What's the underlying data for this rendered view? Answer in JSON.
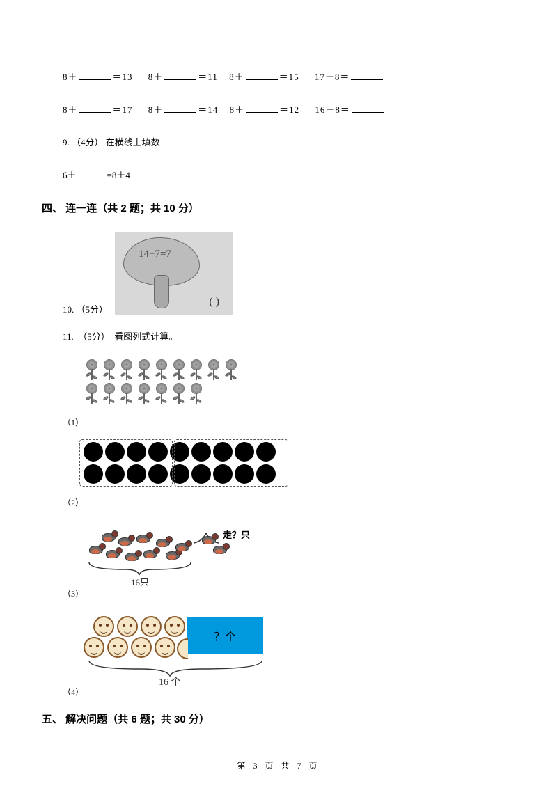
{
  "row1": {
    "e1a": "8＋",
    "e1b": "＝13",
    "e2a": "8＋",
    "e2b": "＝11",
    "e3a": "8＋",
    "e3b": "＝15",
    "e4a": "17－8＝"
  },
  "row2": {
    "e1a": "8＋",
    "e1b": "＝17",
    "e2a": "8＋",
    "e2b": "＝14",
    "e3a": "8＋",
    "e3b": "＝12",
    "e4a": "16－8＝"
  },
  "q9": {
    "label": "9.",
    "points": "（4分）",
    "text": "在横线上填数",
    "eq_a": "6＋",
    "eq_b": "=8＋4"
  },
  "section4": {
    "title": "四、 连一连（共 2 题；共 10 分）"
  },
  "q10": {
    "label": "10.",
    "points": "（5分）",
    "tree_eq": "14−7=7",
    "paren": "(        )"
  },
  "q11": {
    "label": "11.",
    "points": "（5分）",
    "text": "看图列式计算。",
    "sub1": "（1）",
    "sub2": "（2）",
    "sub3": "（3）",
    "sub4": "（4）",
    "flowers_row1": 9,
    "flowers_row2": 7,
    "dots_row1": 9,
    "dots_row2": 9,
    "birds_total": "16只",
    "fly_label": "走？只",
    "faces_total": "16 个",
    "box_label": "？个"
  },
  "section5": {
    "title": "五、 解决问题（共 6 题；共 30 分）"
  },
  "footer": "第 3 页 共 7 页",
  "colors": {
    "bg": "#ffffff",
    "text": "#000000",
    "box_blue": "#0099dd",
    "tree_bg": "#d8d8d8",
    "face_border": "#8a5a2a",
    "face_fill": "#f5e6c8"
  }
}
